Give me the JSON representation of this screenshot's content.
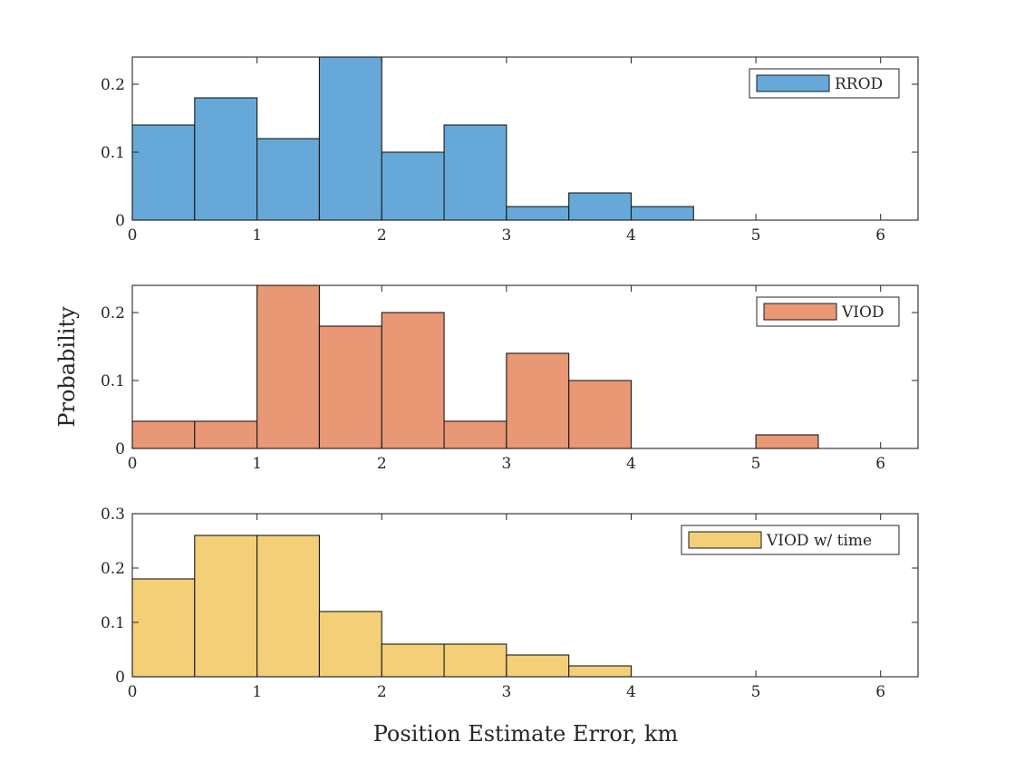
{
  "figure": {
    "ylabel": "Probability",
    "xlabel": "Position Estimate Error, km"
  },
  "chart_data": [
    {
      "type": "bar",
      "histogram": true,
      "name": "RROD",
      "color": "#66a9d8",
      "bin_edges": [
        0,
        0.5,
        1,
        1.5,
        2,
        2.5,
        3,
        3.5,
        4,
        4.5
      ],
      "values": [
        0.14,
        0.18,
        0.12,
        0.24,
        0.1,
        0.14,
        0.02,
        0.04,
        0.02
      ],
      "xlim": [
        0,
        6.3
      ],
      "ylim": [
        0,
        0.24
      ],
      "xticks": [
        0,
        1,
        2,
        3,
        4,
        5,
        6
      ],
      "xtick_labels": [
        "0",
        "1",
        "2",
        "3",
        "4",
        "5",
        "6"
      ],
      "yticks": [
        0,
        0.1,
        0.2
      ],
      "ytick_labels": [
        "0",
        "0.1",
        "0.2"
      ],
      "legend": "top-right",
      "grid": false
    },
    {
      "type": "bar",
      "histogram": true,
      "name": "VIOD",
      "color": "#e89874",
      "bin_edges": [
        0,
        0.5,
        1,
        1.5,
        2,
        2.5,
        3,
        3.5,
        4,
        4.5,
        5,
        5.5
      ],
      "values": [
        0.04,
        0.04,
        0.24,
        0.18,
        0.2,
        0.04,
        0.14,
        0.1,
        0,
        0,
        0.02
      ],
      "xlim": [
        0,
        6.3
      ],
      "ylim": [
        0,
        0.24
      ],
      "xticks": [
        0,
        1,
        2,
        3,
        4,
        5,
        6
      ],
      "xtick_labels": [
        "0",
        "1",
        "2",
        "3",
        "4",
        "5",
        "6"
      ],
      "yticks": [
        0,
        0.1,
        0.2
      ],
      "ytick_labels": [
        "0",
        "0.1",
        "0.2"
      ],
      "legend": "top-right",
      "grid": false
    },
    {
      "type": "bar",
      "histogram": true,
      "name": "VIOD w/ time",
      "color": "#f3d077",
      "bin_edges": [
        0,
        0.5,
        1,
        1.5,
        2,
        2.5,
        3,
        3.5,
        4
      ],
      "values": [
        0.18,
        0.26,
        0.26,
        0.12,
        0.06,
        0.06,
        0.04,
        0.02
      ],
      "xlim": [
        0,
        6.3
      ],
      "ylim": [
        0,
        0.3
      ],
      "xticks": [
        0,
        1,
        2,
        3,
        4,
        5,
        6
      ],
      "xtick_labels": [
        "0",
        "1",
        "2",
        "3",
        "4",
        "5",
        "6"
      ],
      "yticks": [
        0,
        0.1,
        0.2,
        0.3
      ],
      "ytick_labels": [
        "0",
        "0.1",
        "0.2",
        "0.3"
      ],
      "legend": "top-right",
      "grid": false
    }
  ]
}
